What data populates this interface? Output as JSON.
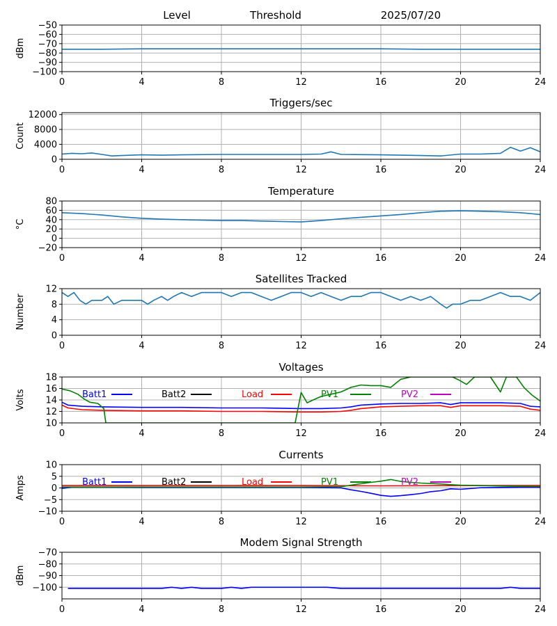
{
  "header": {
    "level_label": "Level",
    "threshold_label": "Threshold",
    "date": "2025/07/20"
  },
  "chart_data": [
    {
      "id": "level",
      "type": "line",
      "title": "",
      "xlabel": "",
      "ylabel": "dBm",
      "xlim": [
        0,
        24
      ],
      "ylim": [
        -100,
        -50
      ],
      "xticks": [
        0,
        4,
        8,
        12,
        16,
        20,
        24
      ],
      "yticks": [
        -100,
        -90,
        -80,
        -70,
        -60,
        -50
      ],
      "grid": true,
      "series": [
        {
          "color": "#1f77b4",
          "x": [
            0,
            2,
            4,
            8,
            12,
            16,
            18,
            20,
            22,
            24
          ],
          "y": [
            -76,
            -76,
            -75.5,
            -75.5,
            -75.5,
            -75.5,
            -76,
            -76,
            -76,
            -76
          ]
        }
      ]
    },
    {
      "id": "triggers",
      "type": "line",
      "title": "Triggers/sec",
      "xlabel": "",
      "ylabel": "Count",
      "xlim": [
        0,
        24
      ],
      "ylim": [
        0,
        12500
      ],
      "xticks": [
        0,
        4,
        8,
        12,
        16,
        20,
        24
      ],
      "yticks": [
        0,
        4000,
        8000,
        12000
      ],
      "grid": true,
      "series": [
        {
          "color": "#1f77b4",
          "x": [
            0,
            0.5,
            1,
            1.5,
            2,
            2.5,
            3,
            4,
            5,
            6,
            8,
            10,
            12,
            13,
            13.5,
            14,
            16,
            17,
            18,
            19,
            20,
            21,
            22,
            22.5,
            23,
            23.5,
            24
          ],
          "y": [
            1400,
            1600,
            1500,
            1700,
            1300,
            900,
            1000,
            1200,
            1100,
            1200,
            1300,
            1300,
            1300,
            1400,
            2000,
            1300,
            1200,
            1100,
            1000,
            900,
            1400,
            1400,
            1600,
            3200,
            2200,
            3100,
            2000
          ]
        }
      ]
    },
    {
      "id": "temperature",
      "type": "line",
      "title": "Temperature",
      "xlabel": "",
      "ylabel": "°C",
      "xlim": [
        0,
        24
      ],
      "ylim": [
        -20,
        80
      ],
      "xticks": [
        0,
        4,
        8,
        12,
        16,
        20,
        24
      ],
      "yticks": [
        -20,
        0,
        20,
        40,
        60,
        80
      ],
      "grid": true,
      "series": [
        {
          "color": "#1f77b4",
          "x": [
            0,
            1,
            2,
            3,
            4,
            5,
            6,
            7,
            8,
            9,
            10,
            11,
            12,
            13,
            14,
            15,
            16,
            17,
            18,
            19,
            20,
            21,
            22,
            23,
            24
          ],
          "y": [
            55,
            53,
            50,
            46,
            43,
            41,
            40,
            39,
            38,
            38,
            37,
            36,
            35,
            38,
            42,
            45,
            48,
            51,
            55,
            58,
            59,
            58,
            57,
            55,
            51
          ]
        }
      ]
    },
    {
      "id": "satellites",
      "type": "line",
      "title": "Satellites Tracked",
      "xlabel": "",
      "ylabel": "Number",
      "xlim": [
        0,
        24
      ],
      "ylim": [
        0,
        12
      ],
      "xticks": [
        0,
        4,
        8,
        12,
        16,
        20,
        24
      ],
      "yticks": [
        0,
        4,
        8,
        12
      ],
      "grid": true,
      "series": [
        {
          "color": "#1f77b4",
          "x": [
            0,
            0.3,
            0.6,
            0.9,
            1.2,
            1.5,
            2,
            2.3,
            2.6,
            3,
            3.5,
            4,
            4.3,
            4.6,
            5,
            5.3,
            5.6,
            6,
            6.5,
            7,
            7.5,
            8,
            8.5,
            9,
            9.5,
            10,
            10.5,
            11,
            11.5,
            12,
            12.5,
            13,
            13.5,
            14,
            14.5,
            15,
            15.5,
            16,
            16.5,
            17,
            17.5,
            18,
            18.5,
            19,
            19.3,
            19.6,
            20,
            20.5,
            21,
            21.5,
            22,
            22.5,
            23,
            23.5,
            24
          ],
          "y": [
            11,
            10,
            11,
            9,
            8,
            9,
            9,
            10,
            8,
            9,
            9,
            9,
            8,
            9,
            10,
            9,
            10,
            11,
            10,
            11,
            11,
            11,
            10,
            11,
            11,
            10,
            9,
            10,
            11,
            11,
            10,
            11,
            10,
            9,
            10,
            10,
            11,
            11,
            10,
            9,
            10,
            9,
            10,
            8,
            7,
            8,
            8,
            9,
            9,
            10,
            11,
            10,
            10,
            9,
            11
          ]
        }
      ]
    },
    {
      "id": "voltages",
      "type": "line",
      "title": "Voltages",
      "xlabel": "",
      "ylabel": "Volts",
      "xlim": [
        0,
        24
      ],
      "ylim": [
        10,
        18
      ],
      "xticks": [
        0,
        4,
        8,
        12,
        16,
        20,
        24
      ],
      "yticks": [
        10,
        12,
        14,
        16,
        18
      ],
      "grid": true,
      "legend": "top, single row",
      "series": [
        {
          "name": "Batt1",
          "color": "#0000ff",
          "x": [
            0,
            0.3,
            1,
            2,
            4,
            6,
            8,
            10,
            12,
            13,
            14,
            14.5,
            15,
            16,
            17,
            18,
            19,
            19.5,
            20,
            21,
            22,
            23,
            23.5,
            24
          ],
          "y": [
            13.6,
            13.1,
            12.9,
            12.8,
            12.7,
            12.7,
            12.6,
            12.6,
            12.5,
            12.5,
            12.6,
            12.8,
            13.1,
            13.3,
            13.4,
            13.4,
            13.5,
            13.2,
            13.5,
            13.5,
            13.5,
            13.4,
            12.9,
            12.8
          ]
        },
        {
          "name": "Batt2",
          "color": "#000000",
          "x": [],
          "y": []
        },
        {
          "name": "Load",
          "color": "#ff0000",
          "x": [
            0,
            0.3,
            1,
            2,
            4,
            6,
            8,
            10,
            12,
            13,
            14,
            14.5,
            15,
            16,
            17,
            18,
            19,
            19.5,
            20,
            21,
            22,
            23,
            23.5,
            24
          ],
          "y": [
            13.1,
            12.6,
            12.3,
            12.2,
            12.1,
            12.1,
            12.0,
            12.0,
            11.9,
            11.9,
            12.0,
            12.2,
            12.5,
            12.8,
            12.9,
            13.0,
            13.0,
            12.7,
            13.0,
            13.0,
            13.0,
            12.9,
            12.4,
            12.2
          ]
        },
        {
          "name": "PV1",
          "color": "#008000",
          "x": [
            0,
            0.4,
            0.8,
            1.1,
            1.4,
            1.8,
            2.1,
            2.2,
            11.7,
            12.0,
            12.3,
            12.6,
            13,
            13.5,
            14,
            14.5,
            15,
            15.5,
            16,
            16.5,
            17,
            17.5,
            18,
            19,
            19.6,
            19.9,
            20.3,
            20.7,
            21,
            21.5,
            22,
            22.3,
            22.8,
            23.2,
            23.6,
            24
          ],
          "y": [
            15.9,
            15.6,
            15.0,
            14.2,
            13.6,
            13.4,
            12.5,
            10.0,
            10.0,
            15.3,
            13.5,
            14.0,
            14.6,
            15.0,
            15.4,
            16.2,
            16.6,
            16.5,
            16.5,
            16.2,
            17.6,
            18.0,
            18.0,
            18.0,
            18.0,
            17.5,
            16.7,
            18.0,
            18.0,
            18.0,
            15.4,
            18.0,
            18.0,
            16.1,
            14.8,
            13.8
          ]
        },
        {
          "name": "PV2",
          "color": "#bf00bf",
          "x": [],
          "y": []
        }
      ]
    },
    {
      "id": "currents",
      "type": "line",
      "title": "Currents",
      "xlabel": "",
      "ylabel": "Amps",
      "xlim": [
        0,
        24
      ],
      "ylim": [
        -10,
        10
      ],
      "xticks": [
        0,
        4,
        8,
        12,
        16,
        20,
        24
      ],
      "yticks": [
        -10,
        -5,
        0,
        5,
        10
      ],
      "grid": true,
      "legend": "top, single row",
      "series": [
        {
          "name": "Batt1",
          "color": "#0000ff",
          "x": [
            0,
            0.5,
            2,
            4,
            8,
            12,
            14,
            14.5,
            15,
            15.5,
            16,
            16.5,
            17,
            17.5,
            18,
            18.5,
            19,
            19.5,
            20,
            21,
            22,
            23,
            24
          ],
          "y": [
            -0.2,
            0.3,
            0.3,
            0.2,
            0.2,
            0.2,
            0.0,
            -0.8,
            -1.5,
            -2.3,
            -3.2,
            -3.6,
            -3.3,
            -2.9,
            -2.4,
            -1.6,
            -1.2,
            -0.4,
            -0.6,
            0.1,
            0.2,
            0.3,
            0.3
          ]
        },
        {
          "name": "Batt2",
          "color": "#000000",
          "x": [],
          "y": []
        },
        {
          "name": "Load",
          "color": "#ff0000",
          "x": [
            0,
            4,
            8,
            12,
            16,
            20,
            24
          ],
          "y": [
            1.0,
            1.0,
            1.0,
            1.0,
            0.9,
            1.0,
            1.0
          ]
        },
        {
          "name": "PV1",
          "color": "#008000",
          "x": [
            0,
            2,
            4,
            8,
            12,
            14,
            14.5,
            15,
            15.5,
            16,
            16.5,
            17,
            17.5,
            18,
            19,
            19.5,
            20,
            21,
            22,
            23,
            24
          ],
          "y": [
            0.4,
            0.4,
            0.4,
            0.4,
            0.4,
            0.5,
            1.2,
            1.8,
            2.4,
            2.9,
            3.6,
            2.8,
            2.4,
            2.1,
            1.7,
            1.4,
            1.2,
            1.0,
            0.8,
            0.7,
            0.6
          ]
        },
        {
          "name": "PV2",
          "color": "#bf00bf",
          "x": [],
          "y": []
        }
      ]
    },
    {
      "id": "modem",
      "type": "line",
      "title": "Modem Signal Strength",
      "xlabel": "",
      "ylabel": "dBm",
      "xlim": [
        0,
        24
      ],
      "ylim": [
        -110,
        -70
      ],
      "xticks": [
        0,
        4,
        8,
        12,
        16,
        20,
        24
      ],
      "yticks": [
        -100,
        -90,
        -80,
        -70
      ],
      "grid": true,
      "series": [
        {
          "color": "#0000ff",
          "x": [
            0.3,
            2,
            4,
            5,
            5.5,
            6,
            6.5,
            7,
            8,
            8.5,
            9,
            9.5,
            10,
            12,
            13.3,
            14,
            16,
            18,
            20,
            22,
            22.5,
            23,
            24
          ],
          "y": [
            -101,
            -101,
            -101,
            -101,
            -100,
            -101,
            -100,
            -101,
            -101,
            -100,
            -101,
            -100,
            -100,
            -100,
            -100,
            -101,
            -101,
            -101,
            -101,
            -101,
            -100,
            -101,
            -101
          ]
        }
      ]
    }
  ]
}
